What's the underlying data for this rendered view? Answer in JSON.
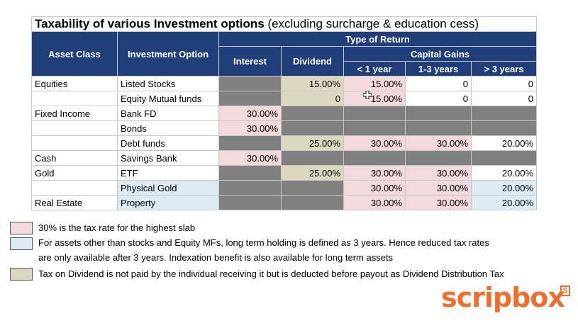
{
  "title_bold": "Taxability of various Investment options",
  "title_rest": " (excluding surcharge & education cess)",
  "headers": {
    "asset_class": "Asset Class",
    "investment_option": "Investment Option",
    "type_of_return": "Type of Return",
    "interest": "Interest",
    "dividend": "Dividend",
    "capital_gains": "Capital Gains",
    "lt1": "< 1 year",
    "y13": "1-3 years",
    "gt3": "> 3 years"
  },
  "rows": [
    {
      "asset": "Equities",
      "option": "Listed Stocks",
      "interest": "",
      "dividend": "15.00%",
      "lt1": "15.00%",
      "y13": "0",
      "gt3": "0"
    },
    {
      "asset": "",
      "option": "Equity Mutual funds",
      "interest": "",
      "dividend": "0",
      "lt1": "15.00%",
      "y13": "0",
      "gt3": "0"
    },
    {
      "asset": "Fixed Income",
      "option": "Bank FD",
      "interest": "30.00%",
      "dividend": "",
      "lt1": "",
      "y13": "",
      "gt3": ""
    },
    {
      "asset": "",
      "option": "Bonds",
      "interest": "30.00%",
      "dividend": "",
      "lt1": "",
      "y13": "",
      "gt3": ""
    },
    {
      "asset": "",
      "option": "Debt funds",
      "interest": "",
      "dividend": "25.00%",
      "lt1": "30.00%",
      "y13": "30.00%",
      "gt3": "20.00%"
    },
    {
      "asset": "Cash",
      "option": "Savings Bank",
      "interest": "30.00%",
      "dividend": "",
      "lt1": "",
      "y13": "",
      "gt3": ""
    },
    {
      "asset": "Gold",
      "option": "ETF",
      "interest": "",
      "dividend": "25.00%",
      "lt1": "30.00%",
      "y13": "30.00%",
      "gt3": "20.00%"
    },
    {
      "asset": "",
      "option": "Physical Gold",
      "interest": "",
      "dividend": "",
      "lt1": "30.00%",
      "y13": "30.00%",
      "gt3": "20.00%"
    },
    {
      "asset": "Real Estate",
      "option": "Property",
      "interest": "",
      "dividend": "",
      "lt1": "30.00%",
      "y13": "30.00%",
      "gt3": "20.00%"
    }
  ],
  "legend": {
    "pink": "30% is the tax rate for the highest slab",
    "blue_line1": "For assets other than stocks and Equity MFs, long term holding is defined as 3 years. Hence reduced tax rates",
    "blue_line2": "are only available after 3 years. Indexation benefit is also available for long term assets",
    "tan": "Tax on Dividend is not paid by the individual receiving it but is deducted before payout as Dividend Distribution Tax"
  },
  "logo": {
    "text": "scripbox",
    "badge": "S"
  },
  "colors": {
    "header": "#1f3e7a",
    "pink": "#f2d9dc",
    "blue": "#dcecf2",
    "tan": "#dcd8c0",
    "grey": "#808080",
    "logo": "#ee6f2d"
  }
}
